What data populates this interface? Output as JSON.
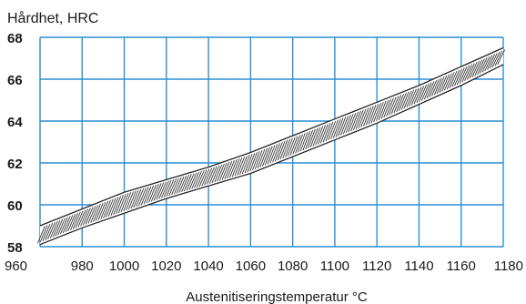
{
  "chart_data": {
    "type": "area",
    "ylabel": "Hårdhet, HRC",
    "xlabel": "Austenitiseringstemperatur °C",
    "xlim": [
      960,
      1180
    ],
    "ylim": [
      58,
      68
    ],
    "x_ticks": [
      960,
      980,
      1000,
      1020,
      1040,
      1060,
      1080,
      1100,
      1120,
      1140,
      1160,
      1180
    ],
    "y_ticks": [
      58,
      60,
      62,
      64,
      66,
      68
    ],
    "grid": true,
    "series": [
      {
        "x": [
          960,
          980,
          1000,
          1020,
          1040,
          1060,
          1080,
          1100,
          1120,
          1140,
          1160,
          1180
        ],
        "y_upper": [
          59.0,
          59.8,
          60.6,
          61.2,
          61.8,
          62.5,
          63.3,
          64.1,
          64.9,
          65.7,
          66.6,
          67.5
        ],
        "y_lower": [
          58.1,
          58.9,
          59.6,
          60.3,
          60.9,
          61.5,
          62.3,
          63.1,
          63.9,
          64.8,
          65.7,
          66.7
        ]
      }
    ],
    "colors": {
      "grid": "#2a8fd6",
      "band_outline": "#262626",
      "hatch": "#3a3a3a",
      "text": "#1a1a1a"
    }
  }
}
